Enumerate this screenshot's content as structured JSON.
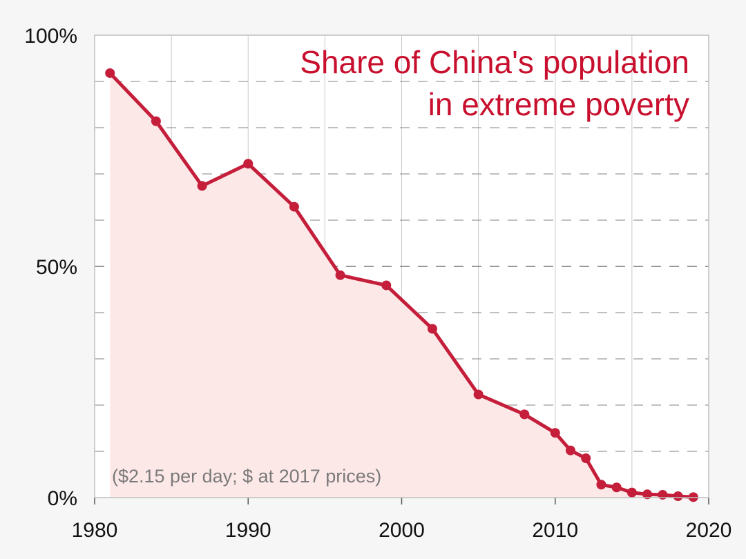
{
  "chart_data": {
    "type": "area",
    "title_lines": [
      "Share of China's population",
      "in extreme poverty"
    ],
    "note": "($2.15 per day; $ at 2017 prices)",
    "xlabel": "",
    "ylabel": "",
    "xlim": [
      1980,
      2020
    ],
    "ylim": [
      0,
      100
    ],
    "x_ticks": [
      {
        "value": 1980,
        "label": "1980"
      },
      {
        "value": 1990,
        "label": "1990"
      },
      {
        "value": 2000,
        "label": "2000"
      },
      {
        "value": 2010,
        "label": "2010"
      },
      {
        "value": 2020,
        "label": "2020"
      }
    ],
    "y_ticks": [
      {
        "value": 0,
        "label": "0%"
      },
      {
        "value": 50,
        "label": "50%"
      },
      {
        "value": 100,
        "label": "100%"
      }
    ],
    "x_minor_grid": [
      1985,
      1995,
      2005,
      2015
    ],
    "y_minor_grid": [
      10,
      20,
      30,
      40,
      60,
      70,
      80,
      90
    ],
    "grid": true,
    "colors": {
      "line": "#c41e3a",
      "fill": "#fde8e8",
      "title": "#c8102e",
      "note": "#7a7a7a"
    },
    "series": [
      {
        "x": [
          1981,
          1984,
          1987,
          1990,
          1993,
          1996,
          1999,
          2002,
          2005,
          2008,
          2010,
          2011,
          2012,
          2013,
          2014,
          2015,
          2016,
          2017,
          2018,
          2019
        ],
        "values": [
          91.8,
          81.4,
          67.4,
          72.2,
          62.9,
          48.1,
          45.9,
          36.5,
          22.3,
          18.0,
          14.0,
          10.2,
          8.5,
          2.8,
          2.2,
          1.1,
          0.7,
          0.6,
          0.3,
          0.1
        ]
      }
    ]
  }
}
